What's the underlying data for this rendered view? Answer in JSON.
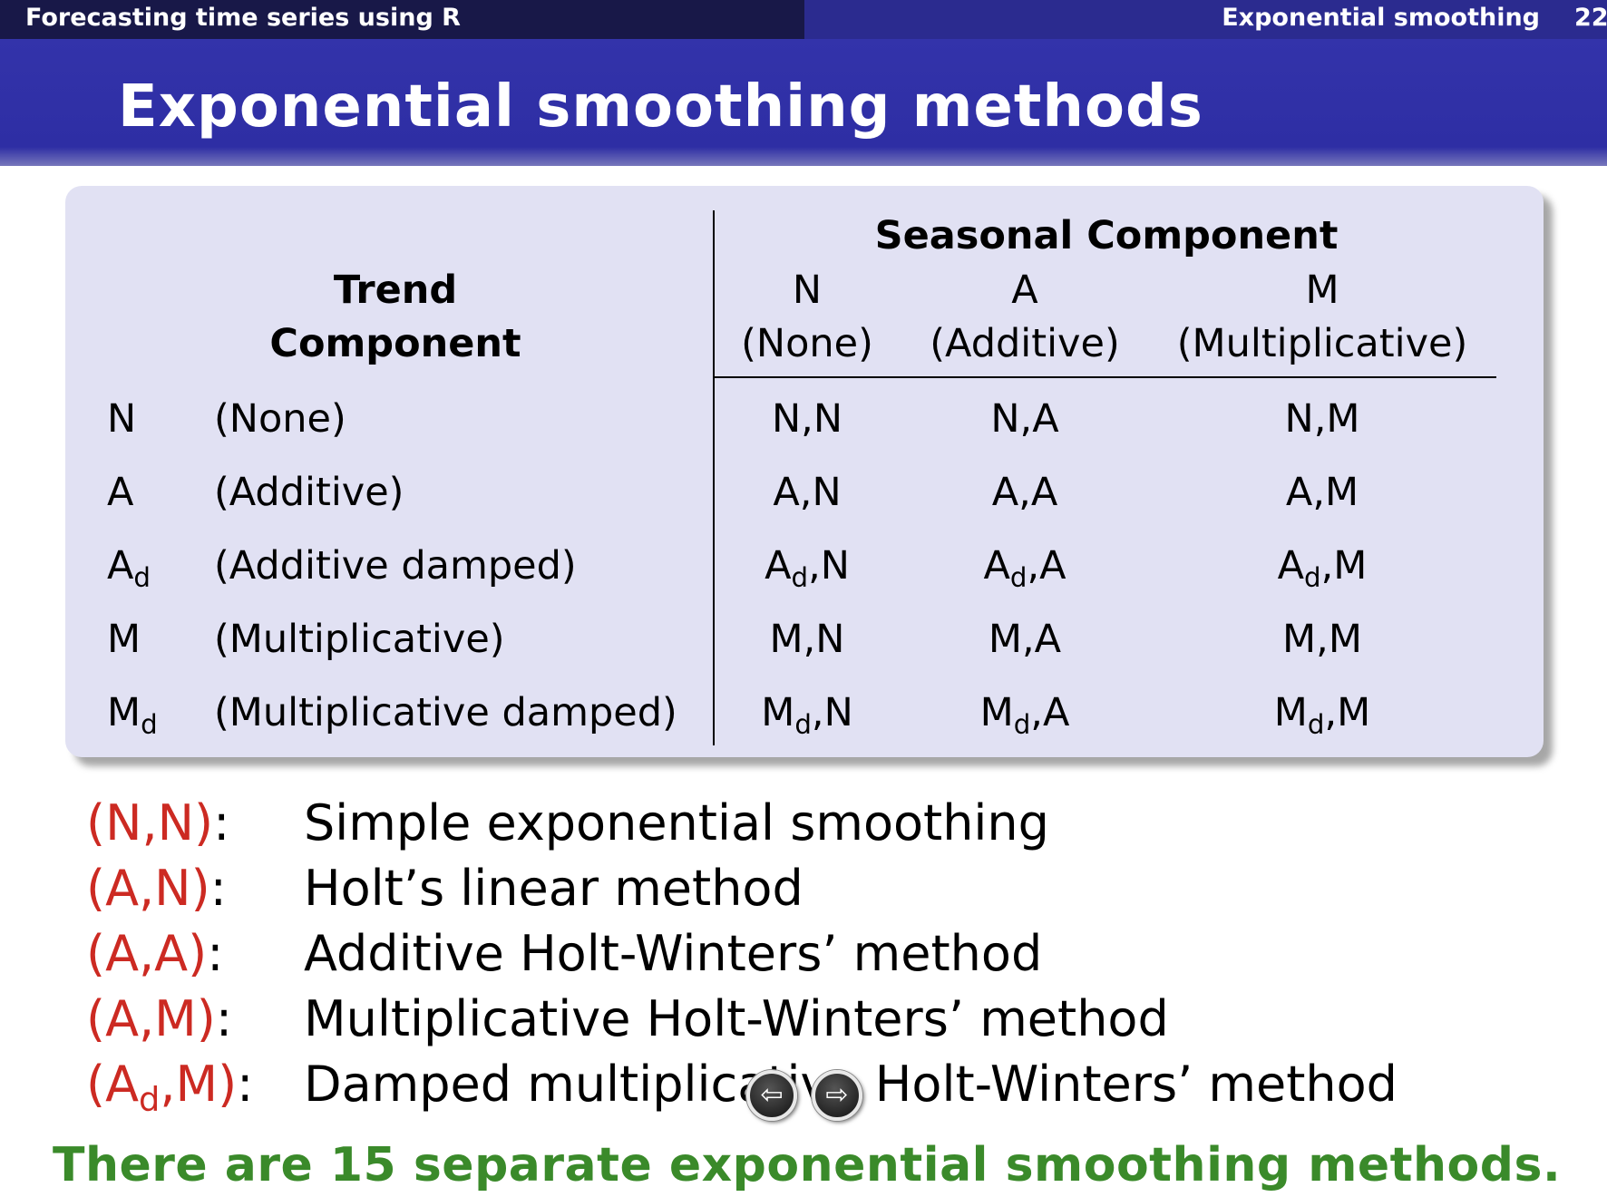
{
  "header": {
    "course_title": "Forecasting time series using R",
    "section_title": "Exponential smoothing",
    "page_number": "22",
    "slide_title": "Exponential smoothing methods"
  },
  "table": {
    "trend_header": [
      "Trend",
      "Component"
    ],
    "seasonal_header": "Seasonal Component",
    "seasonal_columns": [
      {
        "code": "N",
        "label": "(None)"
      },
      {
        "code": "A",
        "label": "(Additive)"
      },
      {
        "code": "M",
        "label": "(Multiplicative)"
      }
    ],
    "rows": [
      {
        "code": "N",
        "sub": "",
        "label": "(None)",
        "cells": [
          {
            "t": "N",
            "s": "",
            "c": ",N"
          },
          {
            "t": "N",
            "s": "",
            "c": ",A"
          },
          {
            "t": "N",
            "s": "",
            "c": ",M"
          }
        ]
      },
      {
        "code": "A",
        "sub": "",
        "label": "(Additive)",
        "cells": [
          {
            "t": "A",
            "s": "",
            "c": ",N"
          },
          {
            "t": "A",
            "s": "",
            "c": ",A"
          },
          {
            "t": "A",
            "s": "",
            "c": ",M"
          }
        ]
      },
      {
        "code": "A",
        "sub": "d",
        "label": "(Additive damped)",
        "cells": [
          {
            "t": "A",
            "s": "d",
            "c": ",N"
          },
          {
            "t": "A",
            "s": "d",
            "c": ",A"
          },
          {
            "t": "A",
            "s": "d",
            "c": ",M"
          }
        ]
      },
      {
        "code": "M",
        "sub": "",
        "label": "(Multiplicative)",
        "cells": [
          {
            "t": "M",
            "s": "",
            "c": ",N"
          },
          {
            "t": "M",
            "s": "",
            "c": ",A"
          },
          {
            "t": "M",
            "s": "",
            "c": ",M"
          }
        ]
      },
      {
        "code": "M",
        "sub": "d",
        "label": "(Multiplicative damped)",
        "cells": [
          {
            "t": "M",
            "s": "d",
            "c": ",N"
          },
          {
            "t": "M",
            "s": "d",
            "c": ",A"
          },
          {
            "t": "M",
            "s": "d",
            "c": ",M"
          }
        ]
      }
    ]
  },
  "legend": [
    {
      "code_pre": "(N,N)",
      "code_sub": "",
      "code_post": "",
      "colon": ":",
      "desc": "Simple exponential smoothing"
    },
    {
      "code_pre": "(A,N)",
      "code_sub": "",
      "code_post": "",
      "colon": ":",
      "desc": "Holt’s linear method"
    },
    {
      "code_pre": "(A,A)",
      "code_sub": "",
      "code_post": "",
      "colon": ":",
      "desc": "Additive Holt-Winters’ method"
    },
    {
      "code_pre": "(A,M)",
      "code_sub": "",
      "code_post": "",
      "colon": ":",
      "desc": "Multiplicative Holt-Winters’ method"
    },
    {
      "code_pre": "(A",
      "code_sub": "d",
      "code_post": ",M)",
      "colon": ":",
      "desc": "Damped multiplicative Holt-Winters’ method"
    }
  ],
  "footer": "There are 15 separate exponential smoothing methods.",
  "colors": {
    "legend_code": "#cc2a22",
    "footer": "#3a8a2a",
    "title_bar": "#2e2ea4",
    "panel": "#e1e1f3"
  },
  "nav": {
    "prev_icon": "arrow-left-icon",
    "next_icon": "arrow-right-icon",
    "prev_glyph": "⇦",
    "next_glyph": "⇨"
  }
}
